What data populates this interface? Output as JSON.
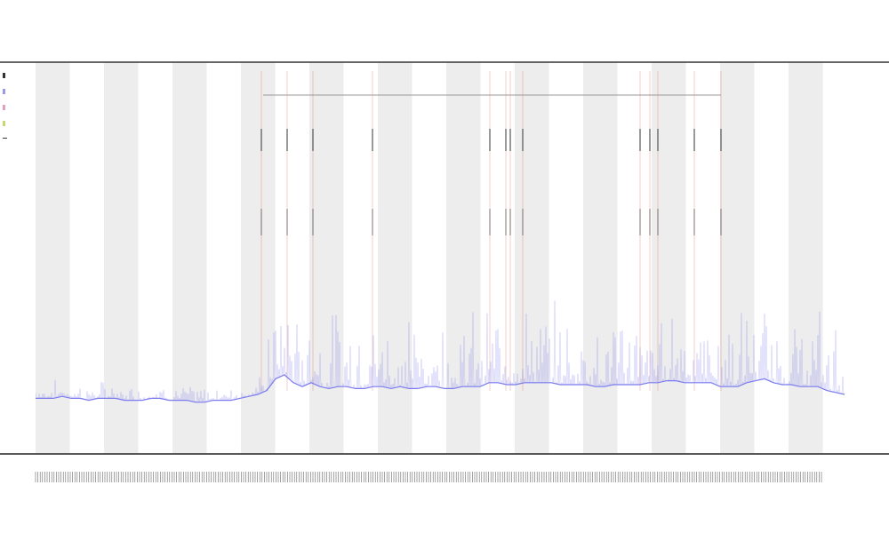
{
  "chart_data": {
    "type": "line",
    "title": "",
    "xlabel": "",
    "ylabel": "",
    "grid": false,
    "legend_placement": "top-left",
    "ylim": [
      0,
      100
    ],
    "xlim": [
      0,
      92
    ],
    "band_period": 7.7,
    "series": [
      {
        "color": "#7b7bef",
        "values": [
          14,
          14,
          14,
          14.5,
          14,
          14,
          13.5,
          14,
          14,
          14,
          13.5,
          13.5,
          13.5,
          14,
          14,
          13.5,
          13.5,
          13.5,
          13,
          13,
          13.5,
          13.5,
          13.5,
          14,
          14.5,
          15,
          16,
          19,
          20,
          18,
          17,
          18,
          17,
          16.5,
          17,
          17,
          16.5,
          16.5,
          17,
          17,
          16.5,
          17,
          16.5,
          16.5,
          17,
          17,
          16.5,
          16.5,
          17,
          17,
          17,
          18,
          18,
          17.5,
          17.5,
          18,
          18,
          18,
          18,
          17.5,
          17.5,
          17.5,
          17.5,
          17,
          17,
          17.5,
          17.5,
          17.5,
          17.5,
          18,
          18,
          18.5,
          18.5,
          18,
          18,
          18,
          18,
          17,
          17,
          17,
          18,
          18.5,
          19,
          18,
          17.5,
          17.5,
          17,
          17,
          17,
          16,
          15.5,
          15
        ]
      }
    ],
    "event_markers": [
      25.4,
      28.3,
      31.2,
      37.9,
      51.1,
      52.9,
      53.4,
      54.8,
      68.0,
      69.1,
      70.0,
      74.1,
      77.1
    ],
    "event_span": [
      25.6,
      77.1
    ],
    "colors": {
      "band": "#ededed",
      "line": "#7b7bef",
      "marker": "#e07060",
      "axis": "#333333"
    }
  }
}
